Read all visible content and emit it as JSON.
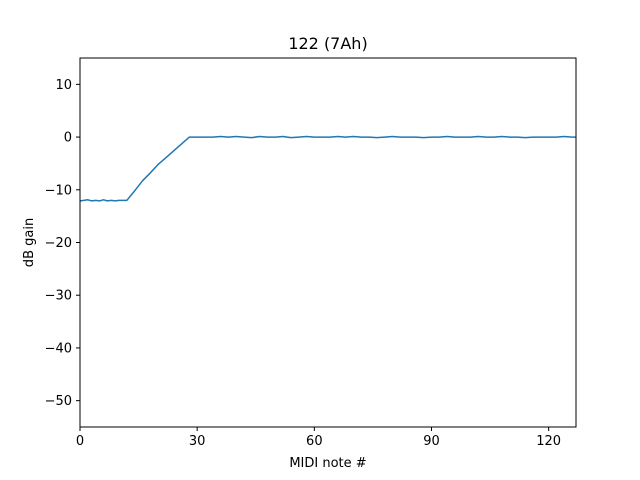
{
  "chart_data": {
    "type": "line",
    "title": "122 (7Ah)",
    "xlabel": "MIDI note #",
    "ylabel": "dB gain",
    "xlim": [
      0,
      127
    ],
    "ylim": [
      -55,
      15
    ],
    "xticks": [
      0,
      30,
      60,
      90,
      120
    ],
    "yticks": [
      10,
      0,
      -10,
      -20,
      -30,
      -40,
      -50
    ],
    "xtick_labels": [
      "0",
      "30",
      "60",
      "90",
      "120"
    ],
    "ytick_labels": [
      "10",
      "0",
      "−10",
      "−20",
      "−30",
      "−40",
      "−50"
    ],
    "grid": false,
    "color": "#1f77b4",
    "series": [
      {
        "x": [
          0,
          1,
          2,
          3,
          4,
          5,
          6,
          7,
          8,
          9,
          10,
          11,
          12,
          14,
          16,
          18,
          20,
          22,
          24,
          26,
          28,
          30,
          32,
          34,
          36,
          38,
          40,
          42,
          44,
          46,
          48,
          50,
          52,
          54,
          56,
          58,
          60,
          62,
          64,
          66,
          68,
          70,
          72,
          74,
          76,
          78,
          80,
          82,
          84,
          86,
          88,
          90,
          92,
          94,
          96,
          98,
          100,
          102,
          104,
          106,
          108,
          110,
          112,
          114,
          116,
          118,
          120,
          122,
          124,
          126,
          127
        ],
        "y": [
          -12.1,
          -12.0,
          -11.9,
          -12.1,
          -12.0,
          -12.1,
          -11.9,
          -12.1,
          -12.0,
          -12.1,
          -12.0,
          -12.0,
          -12.0,
          -10.2,
          -8.3,
          -6.8,
          -5.2,
          -3.9,
          -2.6,
          -1.3,
          0.0,
          0.0,
          0.0,
          0.0,
          0.1,
          0.0,
          0.1,
          0.0,
          -0.1,
          0.1,
          0.0,
          0.0,
          0.1,
          -0.1,
          0.0,
          0.1,
          0.0,
          0.0,
          0.0,
          0.1,
          0.0,
          0.1,
          0.0,
          0.0,
          -0.1,
          0.0,
          0.1,
          0.0,
          0.0,
          0.0,
          -0.1,
          0.0,
          0.0,
          0.1,
          0.0,
          0.0,
          0.0,
          0.1,
          0.0,
          0.0,
          0.1,
          0.0,
          0.0,
          -0.1,
          0.0,
          0.0,
          0.0,
          0.0,
          0.1,
          0.0,
          0.0
        ]
      }
    ]
  }
}
